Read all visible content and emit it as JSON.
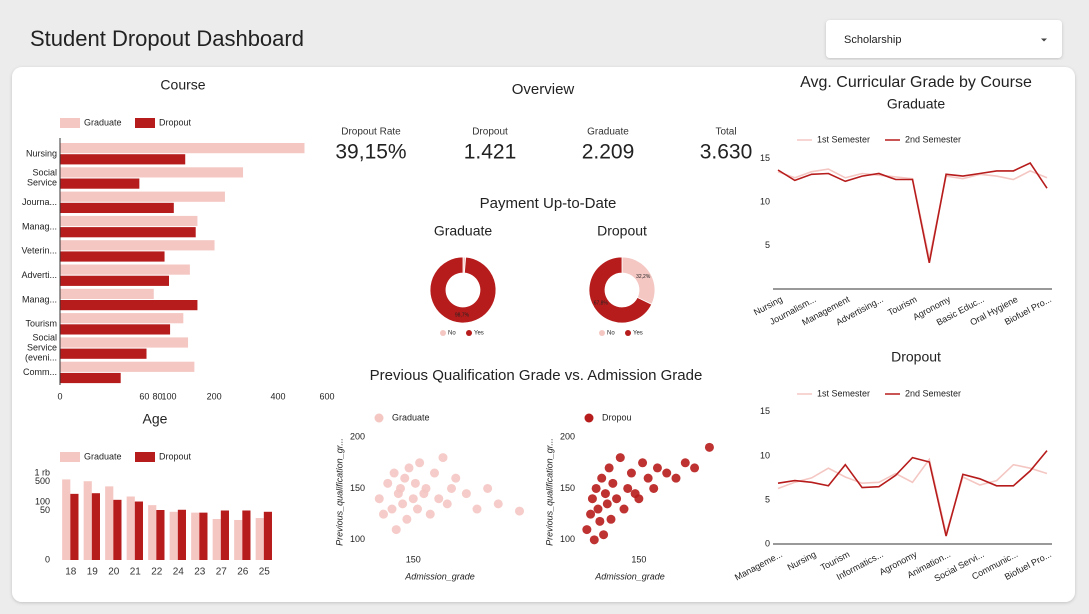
{
  "header": {
    "title": "Student Dropout Dashboard",
    "filter": "Scholarship"
  },
  "overview": {
    "title": "Overview",
    "kpis": [
      {
        "label": "Dropout Rate",
        "value": "39,15%"
      },
      {
        "label": "Dropout",
        "value": "1.421"
      },
      {
        "label": "Graduate",
        "value": "2.209"
      },
      {
        "label": "Total",
        "value": "3.630"
      }
    ]
  },
  "sections": {
    "payment": "Payment Up-to-Date",
    "scatter": "Previous Qualification Grade vs. Admission Grade",
    "grade": "Avg. Curricular Grade by Course"
  },
  "chart_data": [
    {
      "type": "hbar",
      "title": "Course",
      "categories": [
        "Nursing",
        "Social Service",
        "Journa...",
        "Manag...",
        "Veterin...",
        "Adverti...",
        "Manag...",
        "Tourism",
        "Social Service (eveni...",
        "Comm..."
      ],
      "series": [
        {
          "name": "Graduate",
          "color": "#f4c7c3",
          "values": [
            503,
            282,
            229,
            159,
            201,
            142,
            74,
            128,
            138,
            152
          ]
        },
        {
          "name": "Dropout",
          "color": "#b71c1c",
          "values": [
            132,
            53,
            109,
            155,
            92,
            100,
            159,
            102,
            63,
            31
          ]
        }
      ],
      "xlim": [
        0,
        600
      ],
      "xticks": [
        0,
        60,
        80,
        100,
        200,
        400,
        600
      ],
      "scale": "sqrt"
    },
    {
      "type": "bar",
      "title": "Age",
      "categories": [
        "18",
        "19",
        "20",
        "21",
        "22",
        "24",
        "23",
        "27",
        "26",
        "25"
      ],
      "series": [
        {
          "name": "Graduate",
          "color": "#f4c7c3",
          "values": [
            600,
            520,
            345,
            154,
            77,
            45,
            42,
            25,
            23,
            27
          ]
        },
        {
          "name": "Dropout",
          "color": "#b71c1c",
          "values": [
            190,
            200,
            118,
            103,
            52,
            53,
            42,
            50,
            50,
            45
          ]
        }
      ],
      "ylim": [
        0,
        1000
      ],
      "yticks": [
        0,
        50,
        100,
        500,
        {
          "value": 1000,
          "label": "1 rb"
        }
      ],
      "scale": "log"
    },
    {
      "type": "donut",
      "title": "Graduate",
      "categories": [
        "No",
        "Yes"
      ],
      "values": [
        1.3,
        98.7
      ],
      "value_labels": [
        null,
        "98,7%"
      ],
      "colors": [
        "#f4c7c3",
        "#b71c1c"
      ]
    },
    {
      "type": "donut",
      "title": "Dropout",
      "categories": [
        "No",
        "Yes"
      ],
      "values": [
        32.2,
        67.8
      ],
      "value_labels": [
        "32,2%",
        "67,8%"
      ],
      "colors": [
        "#f4c7c3",
        "#b71c1c"
      ]
    },
    {
      "type": "scatter",
      "xlabel": "Admission_grade",
      "ylabel": "Previous_qualification_gr...",
      "series": [
        {
          "name": "Graduate",
          "color": "#f4c7c3",
          "x": [
            134,
            136,
            138,
            140,
            141,
            142,
            143,
            144,
            145,
            146,
            147,
            148,
            150,
            151,
            152,
            153,
            155,
            156,
            158,
            160,
            162,
            164,
            166,
            168,
            170,
            175,
            180,
            185,
            190,
            200
          ],
          "values": [
            140,
            125,
            155,
            130,
            165,
            110,
            145,
            150,
            135,
            160,
            120,
            170,
            140,
            155,
            130,
            175,
            145,
            150,
            125,
            165,
            140,
            180,
            135,
            150,
            160,
            145,
            130,
            150,
            135,
            128
          ]
        }
      ],
      "xlim": [
        132,
        212
      ],
      "ylim": [
        95,
        202
      ],
      "xticks": [
        150
      ],
      "yticks": [
        100,
        150,
        200
      ]
    },
    {
      "type": "scatter",
      "xlabel": "Admission_grade",
      "ylabel": "Previous_qualification_gr...",
      "series": [
        {
          "name": "Dropou",
          "color": "#b71c1c",
          "x": [
            122,
            124,
            125,
            126,
            127,
            128,
            129,
            130,
            131,
            132,
            133,
            134,
            135,
            136,
            138,
            140,
            142,
            144,
            146,
            148,
            150,
            152,
            155,
            158,
            160,
            165,
            170,
            175,
            180,
            188
          ],
          "values": [
            110,
            125,
            140,
            100,
            150,
            130,
            118,
            160,
            105,
            145,
            135,
            170,
            120,
            155,
            140,
            180,
            130,
            150,
            165,
            145,
            140,
            175,
            160,
            150,
            170,
            165,
            160,
            175,
            170,
            190
          ]
        }
      ],
      "xlim": [
        121,
        191
      ],
      "ylim": [
        95,
        202
      ],
      "xticks": [
        150
      ],
      "yticks": [
        100,
        150,
        200
      ]
    },
    {
      "type": "line",
      "title": "Graduate",
      "categories": [
        "Nursing",
        null,
        "Journalism...",
        null,
        "Management",
        null,
        "Advertising...",
        null,
        "Tourism",
        null,
        "Agronomy",
        null,
        "Basic Educ...",
        null,
        "Oral Hygiene",
        null,
        "Biofuel Pro..."
      ],
      "series": [
        {
          "name": "1st Semester",
          "color": "#f4c7c3",
          "values": [
            13.5,
            12.8,
            13.5,
            13.8,
            12.8,
            13.3,
            13.1,
            12.9,
            12.7,
            3.5,
            13.0,
            12.7,
            13.2,
            13.0,
            12.6,
            13.6,
            12.8
          ]
        },
        {
          "name": "2nd Semester",
          "color": "#b71c1c",
          "values": [
            13.7,
            12.5,
            13.2,
            13.3,
            12.4,
            13.0,
            13.3,
            12.6,
            12.6,
            3.0,
            13.2,
            13.0,
            13.3,
            13.6,
            13.6,
            14.5,
            11.6
          ]
        }
      ],
      "ylim": [
        0,
        16
      ],
      "yticks": [
        5,
        10,
        15
      ]
    },
    {
      "type": "line",
      "title": "Dropout",
      "categories": [
        "Manageme...",
        null,
        "Nursing",
        null,
        "Tourism",
        null,
        "Informatics...",
        null,
        "Agronomy",
        null,
        "Animation...",
        null,
        "Social Servi...",
        null,
        "Communic...",
        null,
        "Biofuel Pro..."
      ],
      "series": [
        {
          "name": "1st Semester",
          "color": "#f4c7c3",
          "values": [
            6.3,
            7.0,
            7.5,
            8.6,
            7.6,
            6.9,
            7.0,
            8.0,
            7.0,
            9.6,
            1.2,
            7.6,
            6.7,
            7.2,
            9.0,
            8.6,
            8.0
          ]
        },
        {
          "name": "2nd Semester",
          "color": "#b71c1c",
          "values": [
            6.9,
            7.2,
            7.0,
            6.6,
            9.0,
            6.4,
            6.5,
            7.8,
            9.8,
            9.3,
            0.9,
            7.9,
            7.4,
            6.6,
            6.6,
            8.3,
            10.6
          ]
        }
      ],
      "ylim": [
        0,
        16
      ],
      "yticks": [
        0,
        5,
        10,
        15
      ]
    }
  ]
}
